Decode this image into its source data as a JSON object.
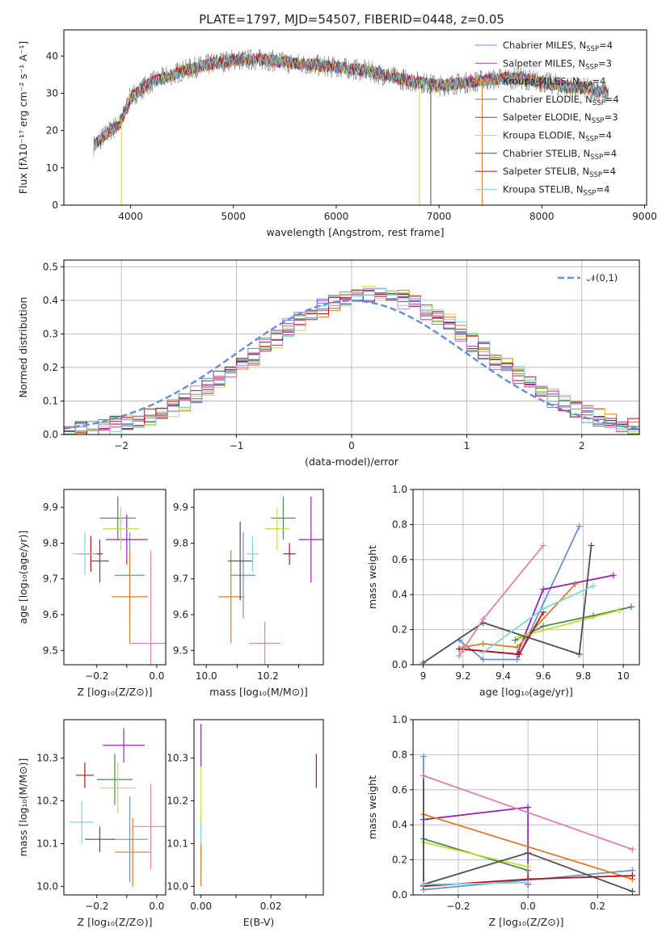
{
  "title": "PLATE=1797, MJD=54507, FIBERID=0448, z=0.05",
  "colors": {
    "axes": "#000000",
    "grid": "#b0b0b0",
    "models": [
      "#6890d8",
      "#a03fbf",
      "#e07b20",
      "#4e8a52",
      "#9b22b0",
      "#c5de3a",
      "#505050",
      "#b0141a",
      "#7dd6de",
      "#e080b0"
    ]
  },
  "models": [
    {
      "name": "Chabrier MILES, N",
      "sub": "SSP",
      "suffix": "=4",
      "color": "#6890d8"
    },
    {
      "name": "Salpeter MILES, N",
      "sub": "SSP",
      "suffix": "=3",
      "color": "#a03fbf"
    },
    {
      "name": "Kroupa MILES, N",
      "sub": "SSP",
      "suffix": "=4",
      "color": "#e07b20"
    },
    {
      "name": "Chabrier ELODIE, N",
      "sub": "SSP",
      "suffix": "=4",
      "color": "#4e8a52"
    },
    {
      "name": "Salpeter ELODIE, N",
      "sub": "SSP",
      "suffix": "=3",
      "color": "#9b22b0"
    },
    {
      "name": "Kroupa ELODIE, N",
      "sub": "SSP",
      "suffix": "=4",
      "color": "#c5de3a"
    },
    {
      "name": "Chabrier STELIB, N",
      "sub": "SSP",
      "suffix": "=4",
      "color": "#505050"
    },
    {
      "name": "Salpeter STELIB, N",
      "sub": "SSP",
      "suffix": "=4",
      "color": "#b0141a"
    },
    {
      "name": "Kroupa STELIB, N",
      "sub": "SSP",
      "suffix": "=4",
      "color": "#7dd6de"
    }
  ],
  "chart_data": [
    {
      "type": "line",
      "id": "spectrum",
      "xlabel": "wavelength [Angstrom, rest frame]",
      "ylabel": "Flux [fλ10⁻¹⁷ erg cm⁻² s⁻¹ A⁻¹]",
      "xlim": [
        3350,
        9020
      ],
      "ylim": [
        0,
        47
      ],
      "xticks": [
        4000,
        5000,
        6000,
        7000,
        8000,
        9000
      ],
      "yticks": [
        0,
        10,
        20,
        30,
        40
      ],
      "continuum": {
        "x": [
          3640,
          3800,
          3900,
          4000,
          4200,
          4500,
          4800,
          5000,
          5300,
          5600,
          6000,
          6300,
          6600,
          6800,
          7000,
          7300,
          7600,
          7800,
          8000,
          8200,
          8500,
          8650
        ],
        "y": [
          16,
          20,
          22,
          29,
          33,
          36,
          38,
          39,
          39,
          38,
          37,
          36,
          34,
          33,
          32,
          33,
          34,
          34,
          33,
          32,
          31,
          30
        ]
      },
      "legend_loc": "upper right"
    },
    {
      "type": "step",
      "id": "residuals",
      "xlabel": "(data-model)/error",
      "ylabel": "Normed distribution",
      "xlim": [
        -2.5,
        2.5
      ],
      "ylim": [
        0,
        0.52
      ],
      "xticks": [
        -2,
        -1,
        0,
        1,
        2
      ],
      "yticks": [
        0.0,
        0.1,
        0.2,
        0.3,
        0.4,
        0.5
      ],
      "bin_width": 0.1,
      "reference": {
        "label": "𝒩(0,1)",
        "mean": 0,
        "sigma": 1
      },
      "grid": true,
      "legend_loc": "upper right"
    },
    {
      "type": "errorbar",
      "id": "Z-age",
      "xlabel": "Z [log₁₀(Z/Z⊙)]",
      "ylabel": "age  [log₁₀(age/yr)]",
      "xlim": [
        -0.31,
        0.03
      ],
      "ylim": [
        9.46,
        9.95
      ],
      "xticks": [
        -0.2,
        -0.1,
        0.0
      ],
      "xticklabels": [
        "−0.2",
        "",
        "0.0"
      ],
      "yticks": [
        9.5,
        9.6,
        9.7,
        9.8,
        9.9
      ],
      "points": [
        {
          "x": -0.09,
          "y": 9.71,
          "xerr": 0.05,
          "yerr": 0.12,
          "c": 0
        },
        {
          "x": -0.1,
          "y": 9.81,
          "xerr": 0.07,
          "yerr": 0.07,
          "c": 4
        },
        {
          "x": -0.09,
          "y": 9.65,
          "xerr": 0.06,
          "yerr": 0.13,
          "c": 2
        },
        {
          "x": -0.13,
          "y": 9.87,
          "xerr": 0.06,
          "yerr": 0.06,
          "c": 3
        },
        {
          "x": -0.12,
          "y": 9.84,
          "xerr": 0.06,
          "yerr": 0.06,
          "c": 5
        },
        {
          "x": -0.19,
          "y": 9.75,
          "xerr": 0.03,
          "yerr": 0.06,
          "c": 6
        },
        {
          "x": -0.22,
          "y": 9.77,
          "xerr": 0.04,
          "yerr": 0.05,
          "c": 7
        },
        {
          "x": -0.24,
          "y": 9.77,
          "xerr": 0.04,
          "yerr": 0.06,
          "c": 8
        },
        {
          "x": -0.02,
          "y": 9.52,
          "xerr": 0.07,
          "yerr": 0.26,
          "c": 9
        }
      ]
    },
    {
      "type": "errorbar",
      "id": "mass-age",
      "xlabel": "mass [log₁₀(M/M⊙)]",
      "ylabel": "",
      "xlim": [
        9.96,
        10.38
      ],
      "ylim": [
        9.46,
        9.95
      ],
      "xticks": [
        10.0,
        10.1,
        10.2,
        10.3
      ],
      "xticklabels": [
        "10.0",
        "",
        "10.2",
        ""
      ],
      "yticks": [
        9.5,
        9.6,
        9.7,
        9.8,
        9.9
      ],
      "points": [
        {
          "x": 10.12,
          "y": 9.71,
          "xerr": 0.04,
          "yerr": 0.12,
          "c": 0
        },
        {
          "x": 10.34,
          "y": 9.81,
          "xerr": 0.04,
          "yerr": 0.12,
          "c": 4
        },
        {
          "x": 10.08,
          "y": 9.65,
          "xerr": 0.04,
          "yerr": 0.13,
          "c": 2
        },
        {
          "x": 10.25,
          "y": 9.87,
          "xerr": 0.04,
          "yerr": 0.06,
          "c": 3
        },
        {
          "x": 10.23,
          "y": 9.84,
          "xerr": 0.04,
          "yerr": 0.06,
          "c": 5
        },
        {
          "x": 10.11,
          "y": 9.75,
          "xerr": 0.04,
          "yerr": 0.11,
          "c": 6
        },
        {
          "x": 10.27,
          "y": 9.77,
          "xerr": 0.02,
          "yerr": 0.03,
          "c": 7
        },
        {
          "x": 10.15,
          "y": 9.77,
          "xerr": 0.02,
          "yerr": 0.05,
          "c": 8
        },
        {
          "x": 10.19,
          "y": 9.52,
          "xerr": 0.05,
          "yerr": 0.06,
          "c": 9
        }
      ]
    },
    {
      "type": "line",
      "id": "age-weight",
      "xlabel": "age  [log₁₀(age/yr)]",
      "ylabel": "mass weight",
      "xlim": [
        8.95,
        10.08
      ],
      "ylim": [
        0,
        1.0
      ],
      "xticks": [
        9.0,
        9.2,
        9.4,
        9.6,
        9.8,
        10.0
      ],
      "yticks": [
        0.0,
        0.2,
        0.4,
        0.6,
        0.8,
        1.0
      ],
      "grid": true,
      "series": [
        {
          "x": [
            9.18,
            9.3,
            9.47,
            9.78
          ],
          "y": [
            0.14,
            0.03,
            0.03,
            0.79
          ],
          "c": 0
        },
        {
          "x": [
            9.2,
            9.47,
            9.6,
            9.95
          ],
          "y": [
            0.09,
            0.06,
            0.43,
            0.51
          ],
          "c": 4
        },
        {
          "x": [
            9.2,
            9.3,
            9.47,
            9.76
          ],
          "y": [
            0.1,
            0.12,
            0.1,
            0.46
          ],
          "c": 2
        },
        {
          "x": [
            9.46,
            9.6,
            9.85,
            10.04
          ],
          "y": [
            0.14,
            0.22,
            0.28,
            0.33
          ],
          "c": 3
        },
        {
          "x": [
            9.48,
            9.98
          ],
          "y": [
            0.16,
            0.31
          ],
          "c": 5
        },
        {
          "x": [
            9.0,
            9.3,
            9.78,
            9.84
          ],
          "y": [
            0.01,
            0.24,
            0.06,
            0.68
          ],
          "c": 6
        },
        {
          "x": [
            9.18,
            9.48,
            9.6
          ],
          "y": [
            0.09,
            0.06,
            0.3
          ],
          "c": 7
        },
        {
          "x": [
            9.3,
            9.6,
            9.85
          ],
          "y": [
            0.07,
            0.32,
            0.45
          ],
          "c": 8
        },
        {
          "x": [
            9.18,
            9.3,
            9.6
          ],
          "y": [
            0.05,
            0.26,
            0.68
          ],
          "c": 9
        }
      ]
    },
    {
      "type": "errorbar",
      "id": "Z-mass",
      "xlabel": "Z [log₁₀(Z/Z⊙)]",
      "ylabel": "mass [log₁₀(M/M⊙)]",
      "xlim": [
        -0.31,
        0.03
      ],
      "ylim": [
        9.98,
        10.39
      ],
      "xticks": [
        -0.2,
        -0.1,
        0.0
      ],
      "xticklabels": [
        "−0.2",
        "",
        "0.0"
      ],
      "yticks": [
        10.0,
        10.1,
        10.2,
        10.3
      ],
      "points": [
        {
          "x": -0.09,
          "y": 10.11,
          "xerr": 0.06,
          "yerr": 0.1,
          "c": 0
        },
        {
          "x": -0.11,
          "y": 10.33,
          "xerr": 0.07,
          "yerr": 0.04,
          "c": 4
        },
        {
          "x": -0.08,
          "y": 10.08,
          "xerr": 0.06,
          "yerr": 0.08,
          "c": 2
        },
        {
          "x": -0.14,
          "y": 10.25,
          "xerr": 0.06,
          "yerr": 0.06,
          "c": 3
        },
        {
          "x": -0.13,
          "y": 10.23,
          "xerr": 0.06,
          "yerr": 0.06,
          "c": 5
        },
        {
          "x": -0.19,
          "y": 10.11,
          "xerr": 0.05,
          "yerr": 0.03,
          "c": 6
        },
        {
          "x": -0.24,
          "y": 10.26,
          "xerr": 0.03,
          "yerr": 0.03,
          "c": 7
        },
        {
          "x": -0.25,
          "y": 10.15,
          "xerr": 0.04,
          "yerr": 0.05,
          "c": 8
        },
        {
          "x": -0.02,
          "y": 10.14,
          "xerr": 0.06,
          "yerr": 0.1,
          "c": 9
        }
      ]
    },
    {
      "type": "errorbar",
      "id": "ebv-mass",
      "xlabel": "E(B-V)",
      "ylabel": "",
      "xlim": [
        -0.002,
        0.035
      ],
      "ylim": [
        9.98,
        10.39
      ],
      "xticks": [
        0.0,
        0.01,
        0.02,
        0.03
      ],
      "xticklabels": [
        "0.00",
        "",
        "0.02",
        ""
      ],
      "yticks": [
        10.0,
        10.1,
        10.2,
        10.3
      ],
      "points": [
        {
          "x": 0.0,
          "y": 10.33,
          "xerr": 0,
          "yerr": 0.05,
          "c": 4
        },
        {
          "x": 0.0,
          "y": 10.2,
          "xerr": 0,
          "yerr": 0.08,
          "c": 5
        },
        {
          "x": 0.0,
          "y": 10.1,
          "xerr": 0,
          "yerr": 0.05,
          "c": 8
        },
        {
          "x": 0.0,
          "y": 10.05,
          "xerr": 0,
          "yerr": 0.05,
          "c": 2
        },
        {
          "x": 0.033,
          "y": 10.27,
          "xerr": 0,
          "yerr": 0.04,
          "c": 7
        }
      ]
    },
    {
      "type": "line",
      "id": "Z-weight",
      "xlabel": "Z [log₁₀(Z/Z⊙)]",
      "ylabel": "mass weight",
      "xlim": [
        -0.33,
        0.32
      ],
      "ylim": [
        0,
        1.0
      ],
      "xticks": [
        -0.2,
        0.0,
        0.2
      ],
      "xticklabels": [
        "−0.2",
        "0.0",
        "0.2"
      ],
      "yticks": [
        0.0,
        0.2,
        0.4,
        0.6,
        0.8,
        1.0
      ],
      "grid": true,
      "series": [
        {
          "x": [
            -0.3,
            -0.3,
            0.3
          ],
          "y": [
            0.79,
            0.03,
            0.14
          ],
          "c": 0
        },
        {
          "x": [
            -0.3,
            0.0,
            0.0
          ],
          "y": [
            0.43,
            0.5,
            0.06
          ],
          "c": 4
        },
        {
          "x": [
            -0.3,
            0.3
          ],
          "y": [
            0.46,
            0.09
          ],
          "c": 2
        },
        {
          "x": [
            -0.3,
            0.0
          ],
          "y": [
            0.32,
            0.14
          ],
          "c": 3
        },
        {
          "x": [
            -0.3,
            0.0
          ],
          "y": [
            0.3,
            0.16
          ],
          "c": 5
        },
        {
          "x": [
            -0.3,
            -0.3,
            0.0,
            0.3
          ],
          "y": [
            0.68,
            0.06,
            0.24,
            0.02
          ],
          "c": 6
        },
        {
          "x": [
            -0.3,
            0.0,
            0.3
          ],
          "y": [
            0.05,
            0.09,
            0.11
          ],
          "c": 7
        },
        {
          "x": [
            -0.3,
            0.0
          ],
          "y": [
            0.06,
            0.07
          ],
          "c": 8
        },
        {
          "x": [
            -0.3,
            0.3
          ],
          "y": [
            0.68,
            0.26
          ],
          "c": 9
        }
      ]
    }
  ]
}
